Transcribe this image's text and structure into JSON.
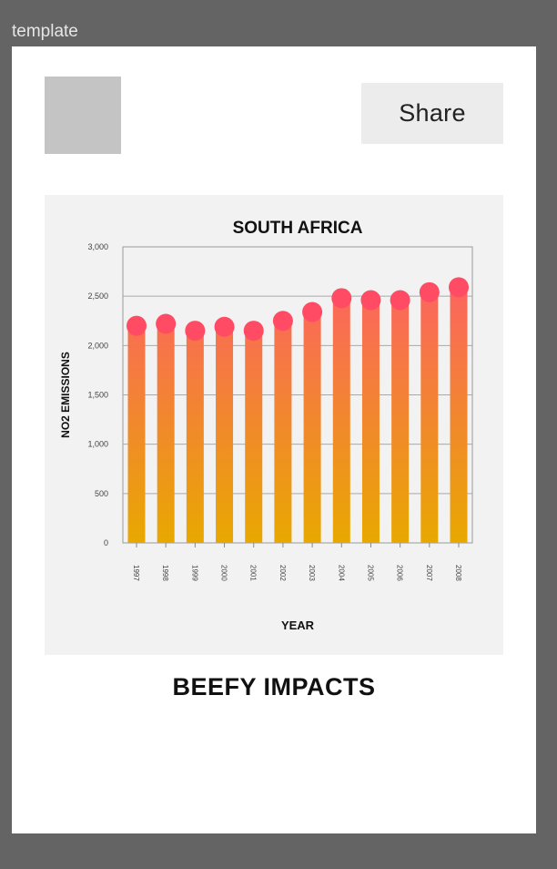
{
  "frame": {
    "label": "template"
  },
  "header": {
    "share_label": "Share"
  },
  "page": {
    "heading": "BEEFY IMPACTS"
  },
  "colors": {
    "background": "#646464",
    "bar_top": "#ff5a6e",
    "bar_bottom": "#e8a800",
    "bar_cap": "#ff4b63",
    "card": "#f2f2f2"
  },
  "chart_data": {
    "type": "bar",
    "title": "SOUTH AFRICA",
    "xlabel": "YEAR",
    "ylabel": "NO2  EMISSIONS",
    "categories": [
      "1997",
      "1998",
      "1999",
      "2000",
      "2001",
      "2002",
      "2003",
      "2004",
      "2005",
      "2006",
      "2007",
      "2008"
    ],
    "values": [
      2200,
      2220,
      2150,
      2190,
      2150,
      2250,
      2340,
      2480,
      2460,
      2460,
      2540,
      2590
    ],
    "y_ticks": [
      "0",
      "500",
      "1,000",
      "1,500",
      "2,000",
      "2,500",
      "3,000"
    ],
    "ylim": [
      0,
      3000
    ],
    "grid": true,
    "legend": false
  }
}
